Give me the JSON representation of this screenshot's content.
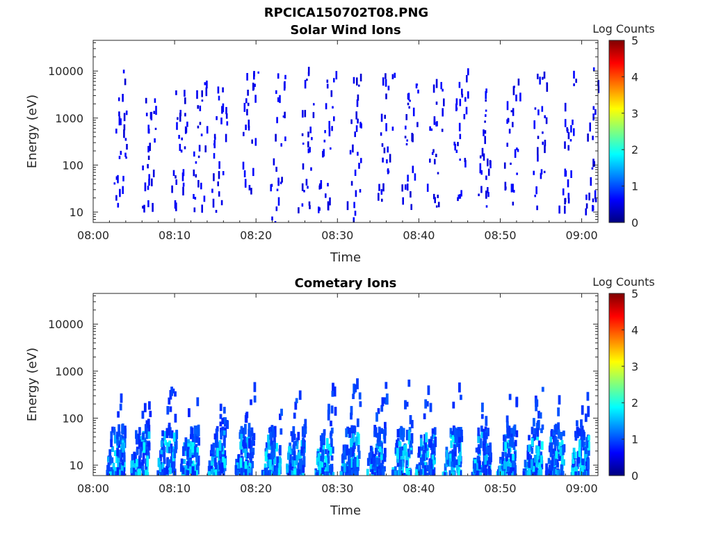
{
  "figure_title": "RPCICA150702T08.PNG",
  "colormap": [
    "#00007f",
    "#0000ff",
    "#007fff",
    "#00ffff",
    "#7fff7f",
    "#ffff00",
    "#ff7f00",
    "#ff0000",
    "#7f0000"
  ],
  "chart_data": [
    {
      "type": "heatmap",
      "title": "Solar Wind Ions",
      "xlabel": "Time",
      "ylabel": "Energy (eV)",
      "x_ticks": [
        "08:00",
        "08:10",
        "08:20",
        "08:30",
        "08:40",
        "08:50",
        "09:00"
      ],
      "x_range_minutes": [
        0,
        62
      ],
      "y_scale": "log",
      "y_ticks": [
        10,
        100,
        1000,
        10000
      ],
      "y_range": [
        6,
        45000
      ],
      "colorbar": {
        "label": "Log Counts",
        "range": [
          0,
          5
        ],
        "ticks": [
          0,
          1,
          2,
          3,
          4,
          5
        ]
      },
      "dominant_value": 0.4,
      "description_bursts": [
        {
          "t": 2.9,
          "e_low": 6,
          "e_high": 12000
        },
        {
          "t": 6.5,
          "e_low": 6,
          "e_high": 14000
        },
        {
          "t": 10.2,
          "e_low": 10,
          "e_high": 4000
        },
        {
          "t": 12.7,
          "e_low": 10,
          "e_high": 6000
        },
        {
          "t": 15.2,
          "e_low": 10,
          "e_high": 5000
        },
        {
          "t": 18.7,
          "e_low": 10,
          "e_high": 10000
        },
        {
          "t": 22.3,
          "e_low": 6,
          "e_high": 12000
        },
        {
          "t": 25.8,
          "e_low": 10,
          "e_high": 12000
        },
        {
          "t": 28.3,
          "e_low": 10,
          "e_high": 10000
        },
        {
          "t": 31.8,
          "e_low": 6,
          "e_high": 10000
        },
        {
          "t": 35.5,
          "e_low": 10,
          "e_high": 10000
        },
        {
          "t": 38.5,
          "e_low": 10,
          "e_high": 9000
        },
        {
          "t": 41.6,
          "e_low": 10,
          "e_high": 6000
        },
        {
          "t": 44.7,
          "e_low": 10,
          "e_high": 10000
        },
        {
          "t": 47.8,
          "e_low": 10,
          "e_high": 5000
        },
        {
          "t": 51.0,
          "e_low": 10,
          "e_high": 9000
        },
        {
          "t": 54.4,
          "e_low": 10,
          "e_high": 10000
        },
        {
          "t": 57.8,
          "e_low": 10,
          "e_high": 10000
        },
        {
          "t": 61.0,
          "e_low": 10,
          "e_high": 12000
        }
      ]
    },
    {
      "type": "heatmap",
      "title": "Cometary Ions",
      "xlabel": "Time",
      "ylabel": "Energy (eV)",
      "x_ticks": [
        "08:00",
        "08:10",
        "08:20",
        "08:30",
        "08:40",
        "08:50",
        "09:00"
      ],
      "x_range_minutes": [
        0,
        62
      ],
      "y_scale": "log",
      "y_ticks": [
        10,
        100,
        1000,
        10000
      ],
      "y_range": [
        6,
        45000
      ],
      "colorbar": {
        "label": "Log Counts",
        "range": [
          0,
          5
        ],
        "ticks": [
          0,
          1,
          2,
          3,
          4,
          5
        ]
      },
      "dominant_value": 0.8,
      "peak_value": 1.9,
      "description_bursts": [
        {
          "t": 2.5,
          "e_low": 6,
          "e_high": 300
        },
        {
          "t": 5.5,
          "e_low": 6,
          "e_high": 250
        },
        {
          "t": 8.8,
          "e_low": 6,
          "e_high": 500
        },
        {
          "t": 11.6,
          "e_low": 6,
          "e_high": 500
        },
        {
          "t": 15.0,
          "e_low": 6,
          "e_high": 400
        },
        {
          "t": 18.3,
          "e_low": 6,
          "e_high": 500
        },
        {
          "t": 21.7,
          "e_low": 6,
          "e_high": 300
        },
        {
          "t": 24.6,
          "e_low": 6,
          "e_high": 900
        },
        {
          "t": 28.2,
          "e_low": 6,
          "e_high": 500
        },
        {
          "t": 31.3,
          "e_low": 6,
          "e_high": 600
        },
        {
          "t": 34.5,
          "e_low": 6,
          "e_high": 500
        },
        {
          "t": 37.7,
          "e_low": 6,
          "e_high": 600
        },
        {
          "t": 40.6,
          "e_low": 6,
          "e_high": 700
        },
        {
          "t": 43.9,
          "e_low": 6,
          "e_high": 500
        },
        {
          "t": 47.5,
          "e_low": 6,
          "e_high": 400
        },
        {
          "t": 50.6,
          "e_low": 6,
          "e_high": 500
        },
        {
          "t": 53.8,
          "e_low": 6,
          "e_high": 500
        },
        {
          "t": 56.5,
          "e_low": 6,
          "e_high": 500
        },
        {
          "t": 59.5,
          "e_low": 6,
          "e_high": 300
        }
      ]
    }
  ]
}
